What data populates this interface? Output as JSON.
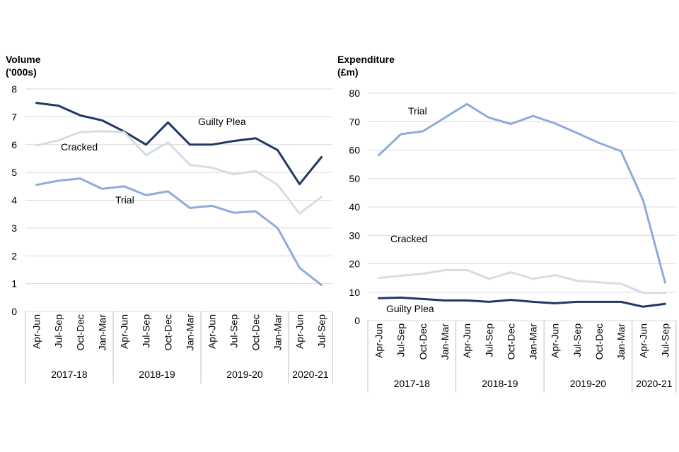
{
  "chart_data": [
    {
      "type": "line",
      "ylabel_lines": [
        "Volume",
        "('000s)"
      ],
      "ylim": [
        0,
        8
      ],
      "yticks": [
        "0",
        "1",
        "2",
        "3",
        "4",
        "5",
        "6",
        "7",
        "8"
      ],
      "categories": [
        "Apr-Jun",
        "Jul-Sep",
        "Oct-Dec",
        "Jan-Mar",
        "Apr-Jun",
        "Jul-Sep",
        "Oct-Dec",
        "Jan-Mar",
        "Apr-Jun",
        "Jul-Sep",
        "Oct-Dec",
        "Jan-Mar",
        "Apr-Jun",
        "Jul-Sep"
      ],
      "groups": [
        {
          "label": "2017-18",
          "count": 4
        },
        {
          "label": "2018-19",
          "count": 4
        },
        {
          "label": "2019-20",
          "count": 4
        },
        {
          "label": "2020-21",
          "count": 2
        }
      ],
      "series": [
        {
          "name": "Guilty Plea",
          "color": "#203864",
          "values": [
            7.5,
            7.4,
            7.05,
            6.87,
            6.47,
            6.0,
            6.8,
            6.0,
            6.0,
            6.13,
            6.23,
            5.8,
            4.58,
            5.55
          ]
        },
        {
          "name": "Cracked",
          "color": "#d6dce5",
          "values": [
            5.97,
            6.15,
            6.45,
            6.48,
            6.45,
            5.62,
            6.08,
            5.27,
            5.17,
            4.93,
            5.05,
            4.55,
            3.52,
            4.12
          ]
        },
        {
          "name": "Trial",
          "color": "#8faadc",
          "values": [
            4.55,
            4.7,
            4.78,
            4.41,
            4.5,
            4.18,
            4.32,
            3.72,
            3.8,
            3.55,
            3.6,
            3.0,
            1.57,
            0.95
          ]
        }
      ]
    },
    {
      "type": "line",
      "ylabel_lines": [
        "Expenditure",
        "(£m)"
      ],
      "ylim": [
        0,
        80
      ],
      "yticks": [
        "0",
        "10",
        "20",
        "30",
        "40",
        "50",
        "60",
        "70",
        "80"
      ],
      "categories": [
        "Apr-Jun",
        "Jul-Sep",
        "Oct-Dec",
        "Jan-Mar",
        "Apr-Jun",
        "Jul-Sep",
        "Oct-Dec",
        "Jan-Mar",
        "Apr-Jun",
        "Jul-Sep",
        "Oct-Dec",
        "Jan-Mar",
        "Apr-Jun",
        "Jul-Sep"
      ],
      "groups": [
        {
          "label": "2017-18",
          "count": 4
        },
        {
          "label": "2018-19",
          "count": 4
        },
        {
          "label": "2019-20",
          "count": 4
        },
        {
          "label": "2020-21",
          "count": 2
        }
      ],
      "series": [
        {
          "name": "Trial",
          "color": "#8faadc",
          "values": [
            58.2,
            65.6,
            66.6,
            71.4,
            76.2,
            71.4,
            69.2,
            72.0,
            69.4,
            66.0,
            62.5,
            59.6,
            42.3,
            13.4
          ]
        },
        {
          "name": "Cracked",
          "color": "#d6dce5",
          "values": [
            15.0,
            15.8,
            16.5,
            17.8,
            17.8,
            14.7,
            17.0,
            14.7,
            16.0,
            14.0,
            13.5,
            13.0,
            9.8,
            9.8
          ]
        },
        {
          "name": "Guilty Plea",
          "color": "#203864",
          "values": [
            7.9,
            8.1,
            7.6,
            7.1,
            7.1,
            6.6,
            7.3,
            6.6,
            6.1,
            6.6,
            6.6,
            6.6,
            4.9,
            5.9
          ]
        }
      ]
    }
  ]
}
